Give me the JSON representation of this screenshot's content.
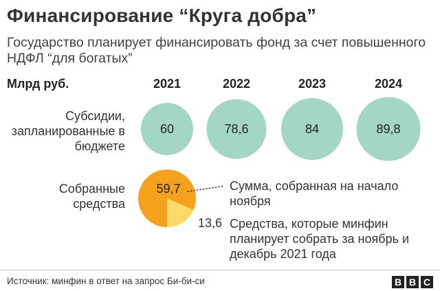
{
  "header": {
    "title": "Финансирование “Круга добра”",
    "subtitle": "Государство планирует финансировать фонд за счет повышенного НДФЛ “для богатых”"
  },
  "chart_data": {
    "type": "bubble",
    "unit_label": "Млрд руб.",
    "categories": [
      "2021",
      "2022",
      "2023",
      "2024"
    ],
    "series": [
      {
        "name": "Субсидии, запланированные в бюджете",
        "values": [
          60,
          78.6,
          84,
          89.8
        ],
        "labels": [
          "60",
          "78,6",
          "84",
          "89,8"
        ]
      },
      {
        "name": "Собранные средства",
        "values": [
          59.7,
          null,
          null,
          null
        ],
        "labels": [
          "59,7",
          "",
          "",
          ""
        ],
        "breakdown": [
          {
            "value": 59.7,
            "label": "59,7",
            "note": "Сумма, собранная на начало ноября"
          },
          {
            "value": 13.6,
            "label": "13,6",
            "note": "Средства, которые минфин планирует собрать за ноябрь и декабрь 2021 года"
          }
        ]
      }
    ]
  },
  "colors": {
    "planned": "#a3d6c3",
    "collected": "#f5a11b",
    "planned_rest": "#ffd966"
  },
  "footer": {
    "source": "Источник: минфин в ответ на запрос Би-би-си",
    "logo": [
      "B",
      "B",
      "C"
    ]
  }
}
